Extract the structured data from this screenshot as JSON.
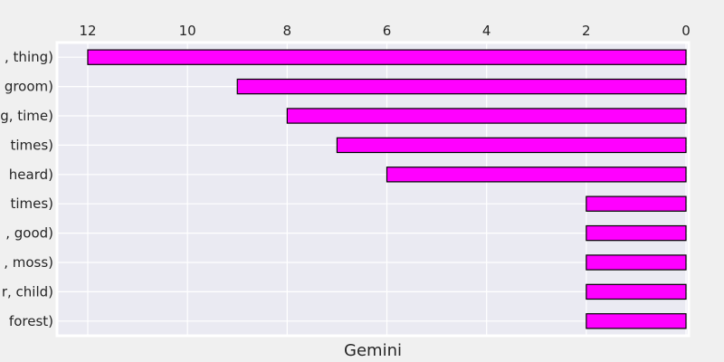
{
  "chart_data": {
    "type": "bar",
    "orientation": "horizontal",
    "x_axis_inverted": true,
    "categories": [
      ", thing)",
      "groom)",
      "g, time)",
      " times)",
      " heard)",
      " times)",
      ", good)",
      ", moss)",
      "r, child)",
      " forest)"
    ],
    "values": [
      12,
      9,
      8,
      7,
      6,
      2,
      2,
      2,
      2,
      2
    ],
    "xlabel": "Gemini",
    "ylabel": "",
    "xlim": [
      0,
      12.6
    ],
    "x_ticks": [
      12,
      10,
      8,
      6,
      4,
      2,
      0
    ],
    "x_tick_labels": [
      "12",
      "10",
      "8",
      "6",
      "4",
      "2",
      "0"
    ],
    "x_tick_position": "top",
    "grid": true,
    "bar_color": "#ff00ff",
    "bar_edge_color": "#000000",
    "plot_background": "#eaeaf2",
    "figure_background": "#f0f0f0",
    "grid_color": "#ffffff"
  }
}
